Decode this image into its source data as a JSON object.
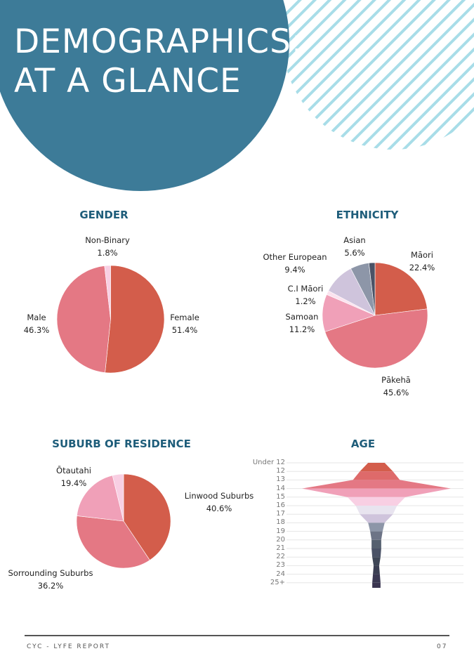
{
  "header": {
    "title_line_1": "DEMOGRAPHICS:",
    "title_line_2": "AT A GLANCE"
  },
  "colors": {
    "header_circle": "#3d7b98",
    "hatch": "#a8dde8",
    "heading": "#1e5d7a",
    "slice_red": "#d35d4b",
    "slice_rose": "#e47884",
    "slice_pink": "#f0a0b8",
    "slice_light_pink": "#f8cfe3",
    "slice_lilac": "#cfc4dc",
    "slice_slate": "#8d96a8",
    "slice_dark": "#4a5266"
  },
  "gender": {
    "heading": "GENDER",
    "chart_data": {
      "type": "pie",
      "slices": [
        {
          "name": "Female",
          "value": 51.4,
          "label": "51.4%",
          "color": "#d35d4b"
        },
        {
          "name": "Male",
          "value": 46.3,
          "label": "46.3%",
          "color": "#e47884"
        },
        {
          "name": "Non-Binary",
          "value": 1.8,
          "label": "1.8%",
          "color": "#f8cfe3"
        }
      ]
    }
  },
  "ethnicity": {
    "heading": "ETHNICITY",
    "chart_data": {
      "type": "pie",
      "slices": [
        {
          "name": "Māori",
          "value": 22.4,
          "label": "22.4%",
          "color": "#d35d4b"
        },
        {
          "name": "Pākehā",
          "value": 45.6,
          "label": "45.6%",
          "color": "#e47884"
        },
        {
          "name": "Samoan",
          "value": 11.2,
          "label": "11.2%",
          "color": "#f0a0b8"
        },
        {
          "name": "C.I Māori",
          "value": 1.2,
          "label": "1.2%",
          "color": "#fbe3ef"
        },
        {
          "name": "Other European",
          "value": 9.4,
          "label": "9.4%",
          "color": "#cfc4dc"
        },
        {
          "name": "Asian",
          "value": 5.6,
          "label": "5.6%",
          "color": "#8d96a8"
        },
        {
          "name": "",
          "value": 1.8,
          "label": "",
          "color": "#4a5266"
        }
      ]
    }
  },
  "suburb": {
    "heading": "SUBURB OF RESIDENCE",
    "chart_data": {
      "type": "pie",
      "slices": [
        {
          "name": "Linwood Suburbs",
          "value": 40.6,
          "label": "40.6%",
          "color": "#d35d4b"
        },
        {
          "name": "Sorrounding Suburbs",
          "value": 36.2,
          "label": "36.2%",
          "color": "#e47884"
        },
        {
          "name": "Ōtautahi",
          "value": 19.4,
          "label": "19.4%",
          "color": "#f0a0b8"
        },
        {
          "name": "",
          "value": 3.8,
          "label": "",
          "color": "#f8cfe3"
        }
      ]
    }
  },
  "age": {
    "heading": "AGE",
    "chart_data": {
      "type": "area",
      "categories": [
        "Under 12",
        "12",
        "13",
        "14",
        "15",
        "16",
        "17",
        "18",
        "19",
        "20",
        "21",
        "22",
        "23",
        "24",
        "25+"
      ],
      "values": [
        1.2,
        2.4,
        3.4,
        10.8,
        4.2,
        3.0,
        2.4,
        1.2,
        0.9,
        0.7,
        0.7,
        0.6,
        0.4,
        0.5,
        0.6
      ],
      "colors": [
        "#d35d4b",
        "#de6a6a",
        "#e47884",
        "#f0a0b8",
        "#f8cfe3",
        "#e8e4ef",
        "#cfc4dc",
        "#8d96a8",
        "#6d7486",
        "#55606f",
        "#4a5266",
        "#3e4656",
        "#3a3e52",
        "#3a3852",
        "#3a3550"
      ]
    }
  },
  "footer": {
    "left": "CYC - LYFE REPORT",
    "right": "07"
  }
}
